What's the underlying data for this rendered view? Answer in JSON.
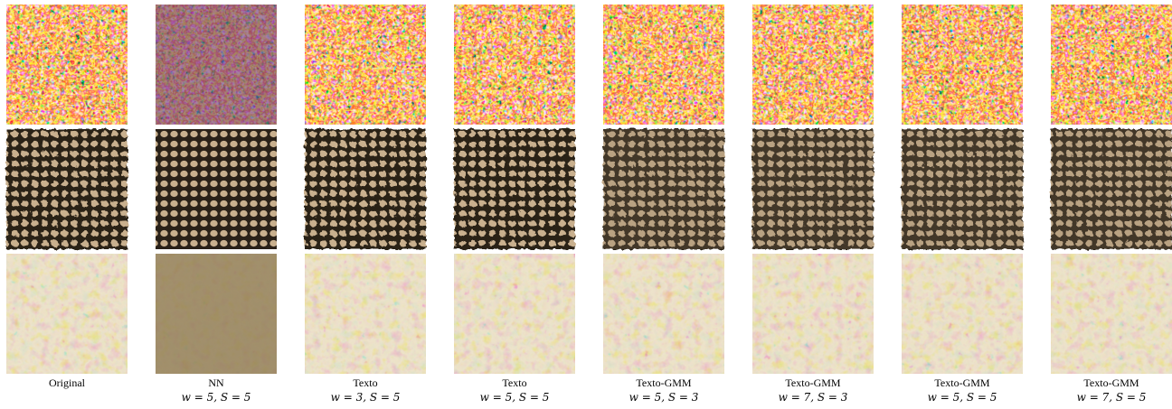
{
  "figure": {
    "columns": [
      {
        "method": "Original"
      },
      {
        "method": "NN",
        "params": "w = 5, S = 5"
      },
      {
        "method": "Texto",
        "params": "w = 3, S = 5"
      },
      {
        "method": "Texto",
        "params": "w = 5, S = 5"
      },
      {
        "method": "Texto-GMM",
        "params": "w = 5, S = 3"
      },
      {
        "method": "Texto-GMM",
        "params": "w = 7, S = 3"
      },
      {
        "method": "Texto-GMM",
        "params": "w = 5, S = 5"
      },
      {
        "method": "Texto-GMM",
        "params": "w = 7, S = 5"
      }
    ]
  }
}
